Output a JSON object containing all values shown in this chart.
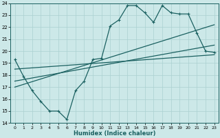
{
  "xlabel": "Humidex (Indice chaleur)",
  "xlim": [
    -0.5,
    23.5
  ],
  "ylim": [
    14,
    24
  ],
  "yticks": [
    14,
    15,
    16,
    17,
    18,
    19,
    20,
    21,
    22,
    23,
    24
  ],
  "xticks": [
    0,
    1,
    2,
    3,
    4,
    5,
    6,
    7,
    8,
    9,
    10,
    11,
    12,
    13,
    14,
    15,
    16,
    17,
    18,
    19,
    20,
    21,
    22,
    23
  ],
  "bg_color": "#cce8e8",
  "grid_color": "#aad0d0",
  "line_color": "#1a6060",
  "line1_x": [
    0,
    1,
    2,
    3,
    4,
    5,
    6,
    7,
    8,
    9,
    10,
    11,
    12,
    13,
    14,
    15,
    16,
    17,
    18,
    19,
    20,
    21,
    22,
    23
  ],
  "line1_y": [
    19.3,
    17.9,
    16.7,
    15.8,
    15.0,
    15.0,
    14.3,
    16.7,
    17.5,
    19.3,
    19.4,
    22.1,
    22.6,
    23.8,
    23.8,
    23.2,
    22.4,
    23.8,
    23.2,
    23.1,
    23.1,
    21.5,
    20.0,
    19.9
  ],
  "line2_x": [
    0,
    23
  ],
  "line2_y": [
    18.5,
    19.7
  ],
  "line3_x": [
    0,
    23
  ],
  "line3_y": [
    17.0,
    22.2
  ],
  "line4_x": [
    0,
    23
  ],
  "line4_y": [
    17.5,
    20.5
  ]
}
